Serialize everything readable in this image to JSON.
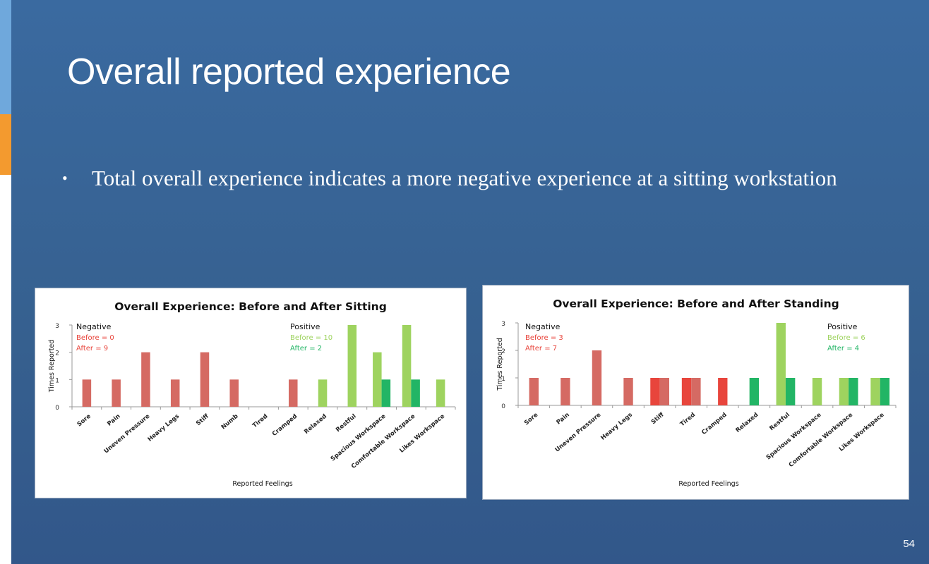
{
  "slide": {
    "title": "Overall reported experience",
    "bullet": "Total overall experience indicates a more negative experience at a sitting workstation",
    "page_number": "54"
  },
  "colors": {
    "neg_before": "#e8453c",
    "neg_after": "#d56a63",
    "pos_before": "#9ed35f",
    "pos_after": "#22b565"
  },
  "chart_data": [
    {
      "type": "bar",
      "title": "Overall Experience: Before and After Sitting",
      "xlabel": "Reported Feelings",
      "ylabel": "Times Reported",
      "ylim": [
        0,
        3
      ],
      "yticks": [
        "0",
        "1",
        "2",
        "3"
      ],
      "categories": [
        "Sore",
        "Pain",
        "Uneven Pressure",
        "Heavy Legs",
        "Stiff",
        "Numb",
        "Tired",
        "Cramped",
        "Relaxed",
        "Restful",
        "Spacious Workspace",
        "Comfortable Workspace",
        "Likes Workspace"
      ],
      "series": [
        {
          "key": "neg_before",
          "values": [
            0,
            0,
            0,
            0,
            0,
            0,
            0,
            0,
            0,
            0,
            0,
            0,
            0
          ]
        },
        {
          "key": "neg_after",
          "values": [
            1,
            1,
            2,
            1,
            2,
            1,
            0,
            1,
            0,
            0,
            0,
            0,
            0
          ]
        },
        {
          "key": "pos_before",
          "values": [
            0,
            0,
            0,
            0,
            0,
            0,
            0,
            0,
            1,
            3,
            2,
            3,
            1
          ]
        },
        {
          "key": "pos_after",
          "values": [
            0,
            0,
            0,
            0,
            0,
            0,
            0,
            0,
            0,
            0,
            1,
            1,
            0
          ]
        }
      ],
      "negative_box": {
        "heading": "Negative",
        "before": "Before = 0",
        "after": "After    = 9"
      },
      "positive_box": {
        "heading": "Positive",
        "before": "Before = 10",
        "after": "After    = 2"
      }
    },
    {
      "type": "bar",
      "title": "Overall Experience: Before and After Standing",
      "xlabel": "Reported Feelings",
      "ylabel": "Times Reported",
      "ylim": [
        0,
        3
      ],
      "yticks": [
        "0",
        "1",
        "2",
        "3"
      ],
      "categories": [
        "Sore",
        "Pain",
        "Uneven Pressure",
        "Heavy Legs",
        "Stiff",
        "Tired",
        "Cramped",
        "Relaxed",
        "Restful",
        "Spacious Workspace",
        "Comfortable Workspace",
        "Likes Workspace"
      ],
      "series": [
        {
          "key": "neg_before",
          "values": [
            0,
            0,
            0,
            0,
            1,
            1,
            1,
            0,
            0,
            0,
            0,
            0
          ]
        },
        {
          "key": "neg_after",
          "values": [
            1,
            1,
            2,
            1,
            1,
            1,
            0,
            0,
            0,
            0,
            0,
            0
          ]
        },
        {
          "key": "pos_before",
          "values": [
            0,
            0,
            0,
            0,
            0,
            0,
            0,
            0,
            3,
            1,
            1,
            1
          ]
        },
        {
          "key": "pos_after",
          "values": [
            0,
            0,
            0,
            0,
            0,
            0,
            0,
            1,
            1,
            0,
            1,
            1
          ]
        }
      ],
      "negative_box": {
        "heading": "Negative",
        "before": "Before = 3",
        "after": "After    = 7"
      },
      "positive_box": {
        "heading": "Positive",
        "before": "Before = 6",
        "after": "After    = 4"
      }
    }
  ]
}
